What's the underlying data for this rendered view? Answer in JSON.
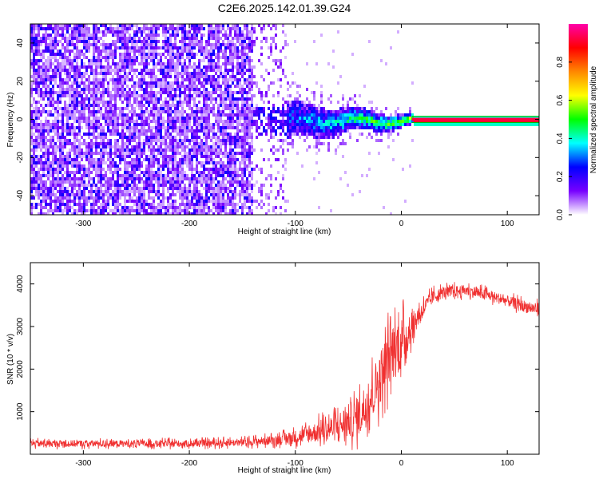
{
  "title": "C2E6.2025.142.01.39.G24",
  "chart_data": [
    {
      "type": "heatmap",
      "title": "C2E6.2025.142.01.39.G24",
      "xlabel": "Height of straight line (km)",
      "ylabel": "Frequency (Hz)",
      "xlim": [
        -350,
        130
      ],
      "ylim": [
        -50,
        50
      ],
      "x_ticks": [
        -300,
        -200,
        -100,
        0,
        100
      ],
      "y_ticks": [
        -40,
        -20,
        0,
        20,
        40
      ],
      "x_tick_labels": [
        "-300",
        "-200",
        "-100",
        "0",
        "100"
      ],
      "y_tick_labels": [
        "-40",
        "-20",
        "0",
        "20",
        "40"
      ],
      "colorbar": {
        "label": "Normalized spectral amplitude",
        "range": [
          0,
          1
        ],
        "ticks": [
          0.0,
          0.2,
          0.4,
          0.6,
          0.8
        ],
        "tick_labels": [
          "0.0",
          "0.2",
          "0.4",
          "0.6",
          "0.8"
        ],
        "colors": [
          "#ffffff",
          "#7700ff",
          "#0000ff",
          "#00ffff",
          "#00ff00",
          "#ffff00",
          "#ff8800",
          "#ff0000",
          "#ff00aa"
        ]
      },
      "regions": [
        {
          "x_from": -350,
          "x_to": -140,
          "description_level": "noise",
          "amplitude_range": [
            0.02,
            0.2
          ]
        },
        {
          "x_from": -140,
          "x_to": 10,
          "center_hz": 0,
          "amplitude_range": [
            0.1,
            0.7
          ]
        },
        {
          "x_from": 10,
          "x_to": 130,
          "center_hz": 0,
          "amplitude": 0.95
        }
      ]
    },
    {
      "type": "line",
      "xlabel": "Height of straight line (km)",
      "ylabel": "SNR (10 * v/v)",
      "xlim": [
        -350,
        130
      ],
      "ylim": [
        0,
        4500
      ],
      "x_ticks": [
        -300,
        -200,
        -100,
        0,
        100
      ],
      "y_ticks": [
        1000,
        2000,
        3000,
        4000
      ],
      "x_tick_labels": [
        "-300",
        "-200",
        "-100",
        "0",
        "100"
      ],
      "y_tick_labels": [
        "1000",
        "2000",
        "3000",
        "4000"
      ],
      "color": "#f03030",
      "series": [
        {
          "x": [
            -350,
            -300,
            -250,
            -200,
            -150,
            -120,
            -100,
            -80,
            -60,
            -40,
            -30,
            -20,
            -10,
            0,
            10,
            20,
            30,
            40,
            60,
            80,
            100,
            120,
            130
          ],
          "y": [
            250,
            250,
            250,
            250,
            280,
            330,
            400,
            520,
            650,
            900,
            1300,
            1800,
            2400,
            2600,
            3000,
            3400,
            3700,
            3800,
            3850,
            3750,
            3600,
            3450,
            3400
          ],
          "spread": [
            100,
            100,
            100,
            100,
            110,
            140,
            200,
            300,
            420,
            600,
            700,
            800,
            900,
            800,
            400,
            250,
            200,
            170,
            160,
            160,
            160,
            180,
            180
          ]
        }
      ]
    }
  ]
}
